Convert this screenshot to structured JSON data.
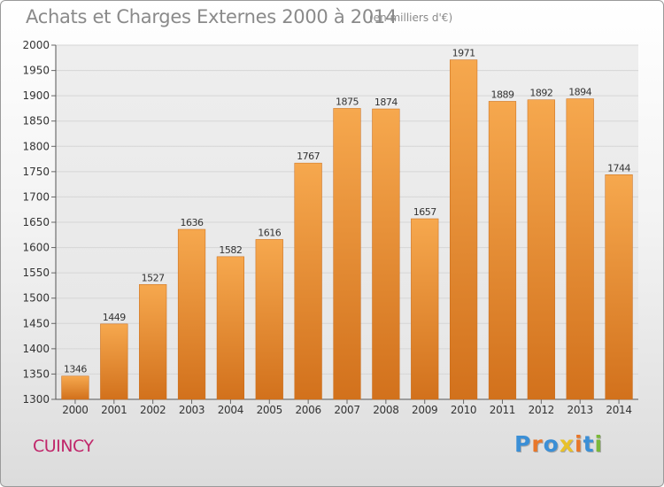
{
  "header": {
    "title": "Achats et Charges Externes 2000 à 2014",
    "subtitle": "(en milliers d'€)"
  },
  "footer": {
    "town": "CUINCY",
    "logo_text": "Proxiti",
    "logo_colors": [
      "#3b8fd6",
      "#e8772a",
      "#3b8fd6",
      "#e8c12a",
      "#e8772a",
      "#3b8fd6",
      "#7bb83a"
    ]
  },
  "chart_data": {
    "type": "bar",
    "title": "Achats et Charges Externes 2000 à 2014",
    "categories": [
      "2000",
      "2001",
      "2002",
      "2003",
      "2004",
      "2005",
      "2006",
      "2007",
      "2008",
      "2009",
      "2010",
      "2011",
      "2012",
      "2013",
      "2014"
    ],
    "values": [
      1346,
      1449,
      1527,
      1636,
      1582,
      1616,
      1767,
      1875,
      1874,
      1657,
      1971,
      1889,
      1892,
      1894,
      1744
    ],
    "ylim": [
      1300,
      2000
    ],
    "yticks": [
      1300,
      1350,
      1400,
      1450,
      1500,
      1550,
      1600,
      1650,
      1700,
      1750,
      1800,
      1850,
      1900,
      1950,
      2000
    ],
    "grid": true,
    "bar_color_top": "#f6a84e",
    "bar_color_bottom": "#d2711c",
    "grid_color": "#d6d6d6",
    "axis_text_color": "#333333"
  }
}
